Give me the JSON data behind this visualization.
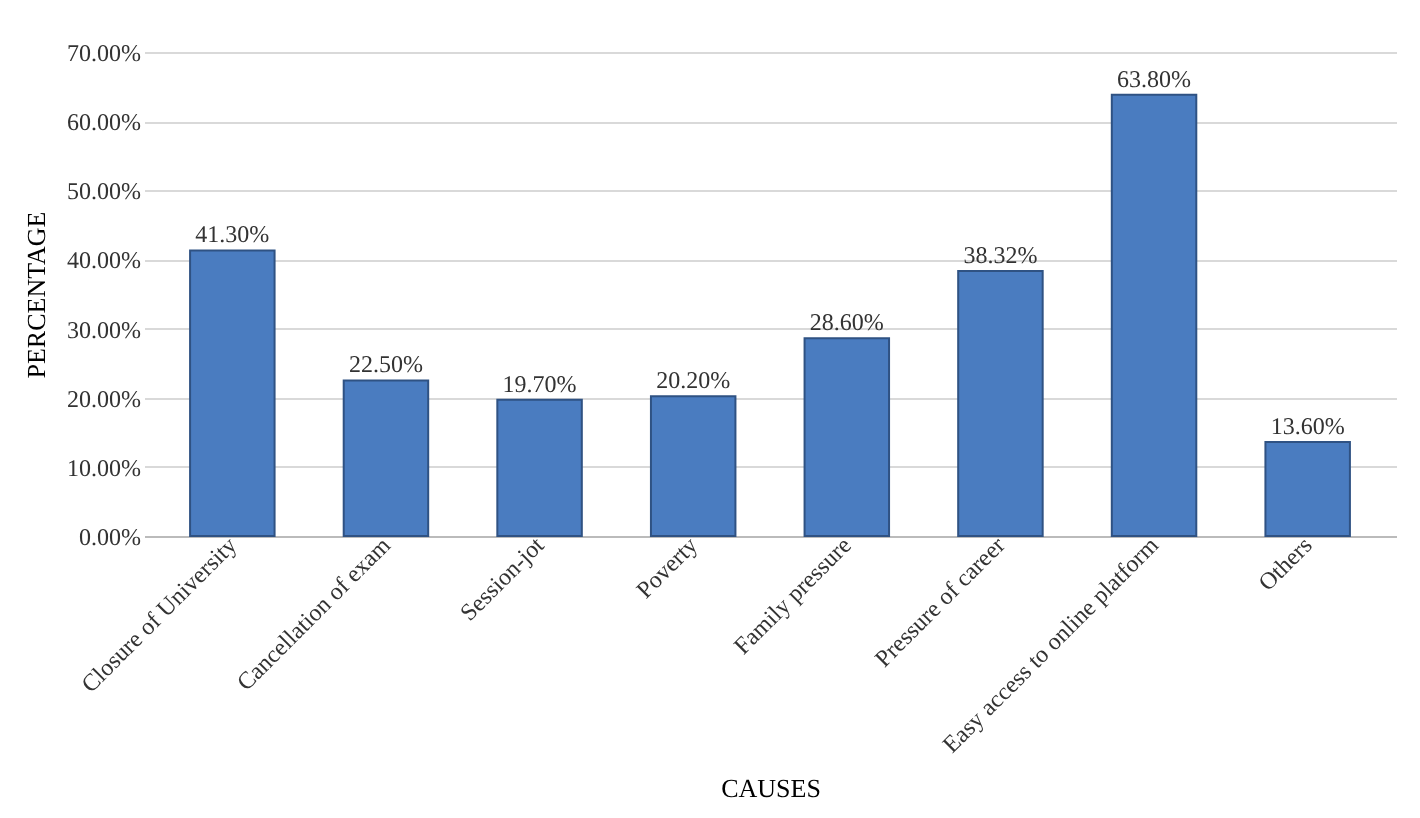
{
  "chart_data": {
    "type": "bar",
    "xlabel": "CAUSES",
    "ylabel": "PERCENTAGE",
    "categories": [
      "Closure of University",
      "Cancellation of exam",
      "Session-jot",
      "Poverty",
      "Family pressure",
      "Pressure of career",
      "Easy access to online platform",
      "Others"
    ],
    "values": [
      41.3,
      22.5,
      19.7,
      20.2,
      28.6,
      38.32,
      63.8,
      13.6
    ],
    "value_labels": [
      "41.30%",
      "22.50%",
      "19.70%",
      "20.20%",
      "28.60%",
      "38.32%",
      "63.80%",
      "13.60%"
    ],
    "color": "#4a7cc0",
    "ylim": [
      0,
      70
    ],
    "yticks": [
      {
        "value": 0,
        "label": "0.00%"
      },
      {
        "value": 10,
        "label": "10.00%"
      },
      {
        "value": 20,
        "label": "20.00%"
      },
      {
        "value": 30,
        "label": "30.00%"
      },
      {
        "value": 40,
        "label": "40.00%"
      },
      {
        "value": 50,
        "label": "50.00%"
      },
      {
        "value": 60,
        "label": "60.00%"
      },
      {
        "value": 70,
        "label": "70.00%"
      }
    ],
    "grid": "y"
  }
}
